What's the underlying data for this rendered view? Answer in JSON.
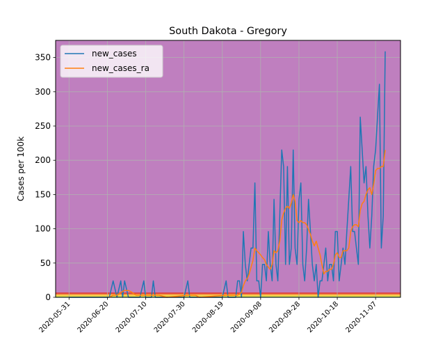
{
  "chart_data": {
    "type": "line",
    "title": "South Dakota - Gregory",
    "xlabel": "",
    "ylabel": "Cases per 100k",
    "ylim": [
      0,
      375
    ],
    "yticks": [
      0,
      50,
      100,
      150,
      200,
      250,
      300,
      350
    ],
    "xticks": [
      "2020-05-31",
      "2020-06-20",
      "2020-07-10",
      "2020-07-30",
      "2020-08-19",
      "2020-09-08",
      "2020-09-28",
      "2020-10-18",
      "2020-11-07"
    ],
    "grid": true,
    "legend_position": "top-left",
    "plot_background": "#bf7fbf",
    "risk_bands": [
      {
        "from": 0,
        "to": 1,
        "color": "#6cc46c"
      },
      {
        "from": 1,
        "to": 3,
        "color": "#f5e04a"
      },
      {
        "from": 3,
        "to": 5,
        "color": "#f5a042"
      },
      {
        "from": 5,
        "to": 7,
        "color": "#e0423c"
      }
    ],
    "series": [
      {
        "name": "new_cases",
        "color": "#1f77b4",
        "points": [
          [
            "2020-05-31",
            0
          ],
          [
            "2020-06-07",
            0
          ],
          [
            "2020-06-21",
            0
          ],
          [
            "2020-06-23",
            24
          ],
          [
            "2020-06-25",
            0
          ],
          [
            "2020-06-27",
            24
          ],
          [
            "2020-06-28",
            0
          ],
          [
            "2020-06-29",
            24
          ],
          [
            "2020-07-01",
            0
          ],
          [
            "2020-07-07",
            0
          ],
          [
            "2020-07-09",
            24
          ],
          [
            "2020-07-10",
            0
          ],
          [
            "2020-07-13",
            0
          ],
          [
            "2020-07-14",
            24
          ],
          [
            "2020-07-15",
            0
          ],
          [
            "2020-07-30",
            0
          ],
          [
            "2020-08-01",
            24
          ],
          [
            "2020-08-02",
            0
          ],
          [
            "2020-08-19",
            0
          ],
          [
            "2020-08-21",
            24
          ],
          [
            "2020-08-22",
            0
          ],
          [
            "2020-08-26",
            0
          ],
          [
            "2020-08-27",
            24
          ],
          [
            "2020-08-28",
            24
          ],
          [
            "2020-08-29",
            0
          ],
          [
            "2020-08-30",
            96
          ],
          [
            "2020-08-31",
            48
          ],
          [
            "2020-09-01",
            24
          ],
          [
            "2020-09-02",
            48
          ],
          [
            "2020-09-03",
            72
          ],
          [
            "2020-09-04",
            72
          ],
          [
            "2020-09-05",
            167
          ],
          [
            "2020-09-06",
            24
          ],
          [
            "2020-09-07",
            24
          ],
          [
            "2020-09-08",
            0
          ],
          [
            "2020-09-09",
            48
          ],
          [
            "2020-09-10",
            48
          ],
          [
            "2020-09-11",
            24
          ],
          [
            "2020-09-12",
            96
          ],
          [
            "2020-09-13",
            48
          ],
          [
            "2020-09-14",
            24
          ],
          [
            "2020-09-15",
            143
          ],
          [
            "2020-09-16",
            48
          ],
          [
            "2020-09-17",
            24
          ],
          [
            "2020-09-18",
            119
          ],
          [
            "2020-09-19",
            215
          ],
          [
            "2020-09-20",
            191
          ],
          [
            "2020-09-21",
            48
          ],
          [
            "2020-09-22",
            191
          ],
          [
            "2020-09-23",
            48
          ],
          [
            "2020-09-24",
            72
          ],
          [
            "2020-09-25",
            215
          ],
          [
            "2020-09-26",
            72
          ],
          [
            "2020-09-27",
            48
          ],
          [
            "2020-09-28",
            143
          ],
          [
            "2020-09-29",
            167
          ],
          [
            "2020-09-30",
            48
          ],
          [
            "2020-10-01",
            24
          ],
          [
            "2020-10-02",
            72
          ],
          [
            "2020-10-03",
            143
          ],
          [
            "2020-10-04",
            96
          ],
          [
            "2020-10-05",
            48
          ],
          [
            "2020-10-06",
            24
          ],
          [
            "2020-10-07",
            48
          ],
          [
            "2020-10-08",
            0
          ],
          [
            "2020-10-09",
            24
          ],
          [
            "2020-10-10",
            24
          ],
          [
            "2020-10-11",
            48
          ],
          [
            "2020-10-12",
            72
          ],
          [
            "2020-10-13",
            24
          ],
          [
            "2020-10-14",
            48
          ],
          [
            "2020-10-15",
            48
          ],
          [
            "2020-10-16",
            24
          ],
          [
            "2020-10-17",
            96
          ],
          [
            "2020-10-18",
            96
          ],
          [
            "2020-10-19",
            24
          ],
          [
            "2020-10-20",
            48
          ],
          [
            "2020-10-21",
            72
          ],
          [
            "2020-10-22",
            48
          ],
          [
            "2020-10-23",
            96
          ],
          [
            "2020-10-24",
            143
          ],
          [
            "2020-10-25",
            191
          ],
          [
            "2020-10-26",
            96
          ],
          [
            "2020-10-27",
            96
          ],
          [
            "2020-10-28",
            72
          ],
          [
            "2020-10-29",
            48
          ],
          [
            "2020-10-30",
            263
          ],
          [
            "2020-10-31",
            215
          ],
          [
            "2020-11-01",
            167
          ],
          [
            "2020-11-02",
            191
          ],
          [
            "2020-11-03",
            119
          ],
          [
            "2020-11-04",
            72
          ],
          [
            "2020-11-05",
            119
          ],
          [
            "2020-11-06",
            191
          ],
          [
            "2020-11-07",
            215
          ],
          [
            "2020-11-08",
            263
          ],
          [
            "2020-11-09",
            311
          ],
          [
            "2020-11-10",
            72
          ],
          [
            "2020-11-11",
            119
          ],
          [
            "2020-11-12",
            359
          ]
        ]
      },
      {
        "name": "new_cases_ra",
        "color": "#ff7f0e",
        "points": [
          [
            "2020-06-21",
            0
          ],
          [
            "2020-06-23",
            3
          ],
          [
            "2020-06-25",
            3
          ],
          [
            "2020-06-27",
            7
          ],
          [
            "2020-06-29",
            10
          ],
          [
            "2020-07-01",
            10
          ],
          [
            "2020-07-03",
            7
          ],
          [
            "2020-07-05",
            3
          ],
          [
            "2020-07-07",
            3
          ],
          [
            "2020-07-09",
            3
          ],
          [
            "2020-07-11",
            3
          ],
          [
            "2020-07-13",
            3
          ],
          [
            "2020-07-15",
            3
          ],
          [
            "2020-07-17",
            3
          ],
          [
            "2020-07-21",
            0
          ],
          [
            "2020-08-01",
            3
          ],
          [
            "2020-08-03",
            3
          ],
          [
            "2020-08-05",
            3
          ],
          [
            "2020-08-07",
            0
          ],
          [
            "2020-08-21",
            3
          ],
          [
            "2020-08-23",
            3
          ],
          [
            "2020-08-25",
            3
          ],
          [
            "2020-08-27",
            3
          ],
          [
            "2020-08-29",
            7
          ],
          [
            "2020-08-30",
            17
          ],
          [
            "2020-08-31",
            24
          ],
          [
            "2020-09-01",
            27
          ],
          [
            "2020-09-02",
            34
          ],
          [
            "2020-09-03",
            44
          ],
          [
            "2020-09-04",
            54
          ],
          [
            "2020-09-05",
            72
          ],
          [
            "2020-09-06",
            68
          ],
          [
            "2020-09-07",
            65
          ],
          [
            "2020-09-08",
            62
          ],
          [
            "2020-09-09",
            58
          ],
          [
            "2020-09-10",
            55
          ],
          [
            "2020-09-11",
            48
          ],
          [
            "2020-09-12",
            44
          ],
          [
            "2020-09-13",
            41
          ],
          [
            "2020-09-14",
            48
          ],
          [
            "2020-09-15",
            68
          ],
          [
            "2020-09-16",
            65
          ],
          [
            "2020-09-17",
            68
          ],
          [
            "2020-09-18",
            82
          ],
          [
            "2020-09-19",
            113
          ],
          [
            "2020-09-20",
            123
          ],
          [
            "2020-09-21",
            130
          ],
          [
            "2020-09-22",
            133
          ],
          [
            "2020-09-23",
            130
          ],
          [
            "2020-09-24",
            137
          ],
          [
            "2020-09-25",
            150
          ],
          [
            "2020-09-26",
            140
          ],
          [
            "2020-09-27",
            112
          ],
          [
            "2020-09-28",
            109
          ],
          [
            "2020-09-29",
            112
          ],
          [
            "2020-09-30",
            109
          ],
          [
            "2020-10-01",
            109
          ],
          [
            "2020-10-02",
            106
          ],
          [
            "2020-10-03",
            99
          ],
          [
            "2020-10-04",
            92
          ],
          [
            "2020-10-05",
            82
          ],
          [
            "2020-10-06",
            75
          ],
          [
            "2020-10-07",
            82
          ],
          [
            "2020-10-08",
            72
          ],
          [
            "2020-10-09",
            62
          ],
          [
            "2020-10-10",
            48
          ],
          [
            "2020-10-11",
            34
          ],
          [
            "2020-10-12",
            38
          ],
          [
            "2020-10-13",
            38
          ],
          [
            "2020-10-14",
            41
          ],
          [
            "2020-10-15",
            41
          ],
          [
            "2020-10-16",
            48
          ],
          [
            "2020-10-17",
            62
          ],
          [
            "2020-10-18",
            65
          ],
          [
            "2020-10-19",
            58
          ],
          [
            "2020-10-20",
            58
          ],
          [
            "2020-10-21",
            68
          ],
          [
            "2020-10-22",
            68
          ],
          [
            "2020-10-23",
            68
          ],
          [
            "2020-10-24",
            72
          ],
          [
            "2020-10-25",
            96
          ],
          [
            "2020-10-26",
            103
          ],
          [
            "2020-10-27",
            106
          ],
          [
            "2020-10-28",
            106
          ],
          [
            "2020-10-29",
            103
          ],
          [
            "2020-10-30",
            127
          ],
          [
            "2020-10-31",
            137
          ],
          [
            "2020-11-01",
            140
          ],
          [
            "2020-11-02",
            150
          ],
          [
            "2020-11-03",
            157
          ],
          [
            "2020-11-04",
            160
          ],
          [
            "2020-11-05",
            150
          ],
          [
            "2020-11-06",
            165
          ],
          [
            "2020-11-07",
            185
          ],
          [
            "2020-11-08",
            188
          ],
          [
            "2020-11-09",
            188
          ],
          [
            "2020-11-10",
            191
          ],
          [
            "2020-11-11",
            191
          ],
          [
            "2020-11-12",
            215
          ]
        ]
      }
    ]
  }
}
